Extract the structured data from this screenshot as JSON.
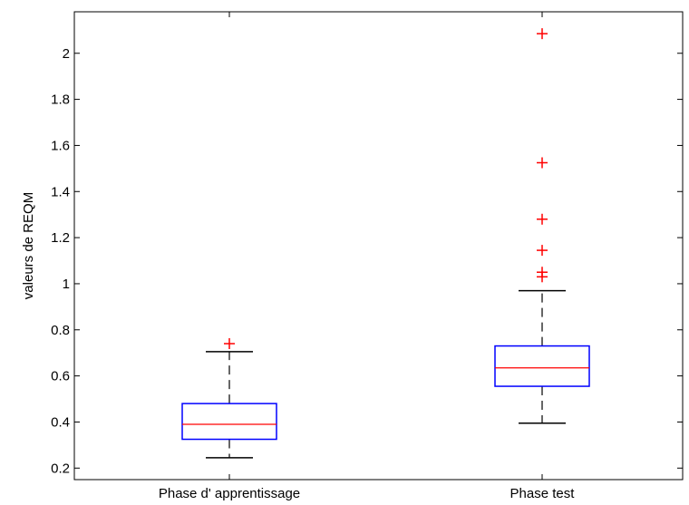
{
  "chart_data": {
    "type": "boxplot",
    "ylabel": "valeurs de REQM",
    "xlabel": "",
    "title": "",
    "ylim": [
      0.15,
      2.18
    ],
    "yticks": [
      0.2,
      0.4,
      0.6,
      0.8,
      1,
      1.2,
      1.4,
      1.6,
      1.8,
      2
    ],
    "ytick_labels": [
      "0.2",
      "0.4",
      "0.6",
      "0.8",
      "1",
      "1.2",
      "1.4",
      "1.6",
      "1.8",
      "2"
    ],
    "grid": false,
    "categories": [
      "Phase d' apprentissage",
      "Phase test"
    ],
    "boxes": [
      {
        "category": "Phase d' apprentissage",
        "whisker_low": 0.245,
        "q1": 0.325,
        "median": 0.39,
        "q3": 0.48,
        "whisker_high": 0.705,
        "outliers": [
          0.74
        ]
      },
      {
        "category": "Phase test",
        "whisker_low": 0.395,
        "q1": 0.555,
        "median": 0.635,
        "q3": 0.73,
        "whisker_high": 0.97,
        "outliers": [
          1.03,
          1.05,
          1.145,
          1.28,
          1.525,
          2.085
        ]
      }
    ],
    "colors": {
      "box": "#0000ff",
      "median": "#ff0000",
      "whisker": "#000000",
      "outlier": "#ff0000"
    }
  }
}
